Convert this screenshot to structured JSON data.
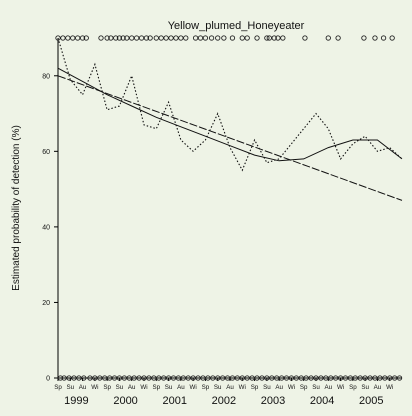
{
  "chart_data": {
    "type": "line",
    "title": "Yellow_plumed_Honeyeater",
    "xlabel": "",
    "ylabel": "Estimated probability of detection (%)",
    "xlim": [
      0,
      28
    ],
    "ylim": [
      0,
      90
    ],
    "yticks": [
      0,
      20,
      40,
      60,
      80
    ],
    "season_labels": [
      "Sp",
      "Su",
      "Au",
      "Wi"
    ],
    "years": [
      "1999",
      "2000",
      "2001",
      "2002",
      "2003",
      "2004",
      "2005"
    ],
    "grid": false,
    "series": [
      {
        "style": "dotted",
        "x": [
          0,
          1,
          2,
          3,
          4,
          5,
          6,
          7,
          8,
          9,
          10,
          11,
          12,
          13,
          14,
          15,
          16,
          17,
          18,
          19,
          20,
          21,
          22,
          23,
          24,
          25,
          26,
          27,
          28
        ],
        "y": [
          90,
          79,
          75,
          83,
          71,
          72,
          80,
          67,
          66,
          73,
          63,
          60,
          63,
          70,
          61,
          55,
          63,
          57,
          58,
          62,
          66,
          70,
          66,
          58,
          62,
          64,
          60,
          61,
          58
        ]
      },
      {
        "style": "solid",
        "x": [
          0,
          2,
          4,
          6,
          8,
          10,
          12,
          14,
          16,
          18,
          20,
          22,
          24,
          26,
          28
        ],
        "y": [
          82,
          78.5,
          75,
          72,
          69,
          66.5,
          64,
          61.5,
          59,
          57.5,
          58,
          61,
          63,
          63,
          58
        ]
      },
      {
        "style": "dashed",
        "x": [
          0,
          28
        ],
        "y": [
          80,
          47
        ]
      }
    ],
    "rug_top": [
      0,
      0.4,
      0.8,
      1.2,
      1.6,
      2.0,
      2.3,
      3.5,
      4.0,
      4.3,
      4.7,
      5.0,
      5.3,
      5.6,
      6.0,
      6.4,
      6.8,
      7.2,
      7.5,
      8.0,
      8.4,
      8.8,
      9.2,
      9.6,
      10.0,
      10.4,
      11.2,
      11.6,
      12.0,
      12.5,
      13.0,
      13.5,
      14.2,
      15.0,
      15.4,
      16.2,
      17.0,
      17.2,
      17.6,
      17.9,
      18.3,
      20.1,
      22.0,
      22.8,
      24.9,
      25.8,
      26.5,
      27.2
    ],
    "rug_bottom": [
      0.2,
      0.5,
      0.9,
      1.3,
      1.7,
      2.1,
      2.6,
      3.0,
      3.4,
      3.8,
      4.2,
      4.6,
      5.0,
      5.4,
      5.8,
      6.2,
      6.6,
      7.0,
      7.4,
      7.8,
      8.2,
      8.6,
      9.0,
      9.4,
      9.8,
      10.2,
      10.6,
      11.0,
      11.4,
      11.8,
      12.2,
      12.6,
      13.0,
      13.4,
      13.8,
      14.2,
      14.6,
      15.0,
      15.4,
      15.8,
      16.2,
      16.6,
      17.0,
      17.4,
      17.8,
      18.2,
      18.6,
      19.0,
      19.4,
      19.8,
      20.2,
      20.6,
      21.0,
      21.4,
      21.8,
      22.2,
      22.6,
      23.0,
      23.4,
      23.8,
      24.2,
      24.6,
      25.0,
      25.4,
      25.8,
      26.2,
      26.6,
      27.0,
      27.4,
      27.8
    ]
  }
}
